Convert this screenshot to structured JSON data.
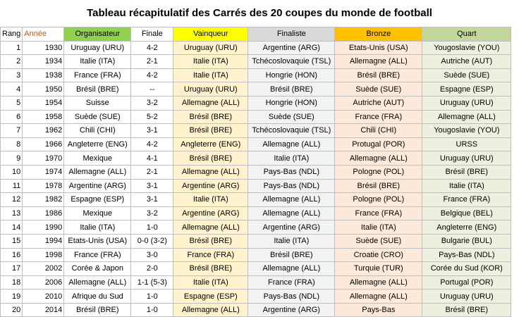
{
  "title": "Tableau récapitulatif des Carrés des 20 coupes du monde de football",
  "headers": {
    "rang": "Rang",
    "annee": "Année",
    "organisateur": "Organisateur",
    "finale": "Finale",
    "vainqueur": "Vainqueur",
    "finaliste": "Finaliste",
    "bronze": "Bronze",
    "quart": "Quart"
  },
  "colors": {
    "organisateur_header": "#92d050",
    "vainqueur_header": "#ffff00",
    "finaliste_header": "#d9d9d9",
    "bronze_header": "#ffc000",
    "quart_header": "#c4d79b"
  },
  "rows": [
    {
      "rang": "1",
      "annee": "1930",
      "organisateur": "Uruguay (URU)",
      "finale": "4-2",
      "vainqueur": "Uruguay (URU)",
      "finaliste": "Argentine (ARG)",
      "bronze": "Etats-Unis (USA)",
      "quart": "Yougoslavie (YOU)"
    },
    {
      "rang": "2",
      "annee": "1934",
      "organisateur": "Italie (ITA)",
      "finale": "2-1",
      "vainqueur": "Italie (ITA)",
      "finaliste": "Tchécoslovaquie (TSL)",
      "bronze": "Allemagne (ALL)",
      "quart": "Autriche (AUT)"
    },
    {
      "rang": "3",
      "annee": "1938",
      "organisateur": "France (FRA)",
      "finale": "4-2",
      "vainqueur": "Italie (ITA)",
      "finaliste": "Hongrie (HON)",
      "bronze": "Brésil (BRE)",
      "quart": "Suède (SUE)"
    },
    {
      "rang": "4",
      "annee": "1950",
      "organisateur": "Brésil (BRE)",
      "finale": "--",
      "vainqueur": "Uruguay (URU)",
      "finaliste": "Brésil (BRE)",
      "bronze": "Suède (SUE)",
      "quart": "Espagne (ESP)"
    },
    {
      "rang": "5",
      "annee": "1954",
      "organisateur": "Suisse",
      "finale": "3-2",
      "vainqueur": "Allemagne (ALL)",
      "finaliste": "Hongrie (HON)",
      "bronze": "Autriche (AUT)",
      "quart": "Uruguay (URU)"
    },
    {
      "rang": "6",
      "annee": "1958",
      "organisateur": "Suède (SUE)",
      "finale": "5-2",
      "vainqueur": "Brésil (BRE)",
      "finaliste": "Suède (SUE)",
      "bronze": "France (FRA)",
      "quart": "Allemagne (ALL)"
    },
    {
      "rang": "7",
      "annee": "1962",
      "organisateur": "Chili (CHI)",
      "finale": "3-1",
      "vainqueur": "Brésil (BRE)",
      "finaliste": "Tchécoslovaquie (TSL)",
      "bronze": "Chili (CHI)",
      "quart": "Yougoslavie (YOU)"
    },
    {
      "rang": "8",
      "annee": "1966",
      "organisateur": "Angleterre (ENG)",
      "finale": "4-2",
      "vainqueur": "Angleterre (ENG)",
      "finaliste": "Allemagne (ALL)",
      "bronze": "Protugal (POR)",
      "quart": "URSS"
    },
    {
      "rang": "9",
      "annee": "1970",
      "organisateur": "Mexique",
      "finale": "4-1",
      "vainqueur": "Brésil (BRE)",
      "finaliste": "Italie (ITA)",
      "bronze": "Allemagne (ALL)",
      "quart": "Uruguay (URU)"
    },
    {
      "rang": "10",
      "annee": "1974",
      "organisateur": "Allemagne (ALL)",
      "finale": "2-1",
      "vainqueur": "Allemagne (ALL)",
      "finaliste": "Pays-Bas (NDL)",
      "bronze": "Pologne (POL)",
      "quart": "Brésil (BRE)"
    },
    {
      "rang": "11",
      "annee": "1978",
      "organisateur": "Argentine (ARG)",
      "finale": "3-1",
      "vainqueur": "Argentine (ARG)",
      "finaliste": "Pays-Bas (NDL)",
      "bronze": "Brésil (BRE)",
      "quart": "Italie (ITA)"
    },
    {
      "rang": "12",
      "annee": "1982",
      "organisateur": "Espagne (ESP)",
      "finale": "3-1",
      "vainqueur": "Italie (ITA)",
      "finaliste": "Allemagne (ALL)",
      "bronze": "Pologne (POL)",
      "quart": "France (FRA)"
    },
    {
      "rang": "13",
      "annee": "1986",
      "organisateur": "Mexique",
      "finale": "3-2",
      "vainqueur": "Argentine (ARG)",
      "finaliste": "Allemagne (ALL)",
      "bronze": "France (FRA)",
      "quart": "Belgique (BEL)"
    },
    {
      "rang": "14",
      "annee": "1990",
      "organisateur": "Italie (ITA)",
      "finale": "1-0",
      "vainqueur": "Allemagne (ALL)",
      "finaliste": "Argentine (ARG)",
      "bronze": "Italie (ITA)",
      "quart": "Angleterre (ENG)"
    },
    {
      "rang": "15",
      "annee": "1994",
      "organisateur": "Etats-Unis (USA)",
      "finale": "0-0 (3-2)",
      "vainqueur": "Brésil (BRE)",
      "finaliste": "Italie (ITA)",
      "bronze": "Suède (SUE)",
      "quart": "Bulgarie (BUL)"
    },
    {
      "rang": "16",
      "annee": "1998",
      "organisateur": "France (FRA)",
      "finale": "3-0",
      "vainqueur": "France (FRA)",
      "finaliste": "Brésil (BRE)",
      "bronze": "Croatie (CRO)",
      "quart": "Pays-Bas (NDL)"
    },
    {
      "rang": "17",
      "annee": "2002",
      "organisateur": "Corée & Japon",
      "finale": "2-0",
      "vainqueur": "Brésil (BRE)",
      "finaliste": "Allemagne (ALL)",
      "bronze": "Turquie (TUR)",
      "quart": "Corée du Sud (KOR)"
    },
    {
      "rang": "18",
      "annee": "2006",
      "organisateur": "Allemagne (ALL)",
      "finale": "1-1 (5-3)",
      "vainqueur": "Italie (ITA)",
      "finaliste": "France (FRA)",
      "bronze": "Allemagne (ALL)",
      "quart": "Portugal (POR)"
    },
    {
      "rang": "19",
      "annee": "2010",
      "organisateur": "Afrique du Sud",
      "finale": "1-0",
      "vainqueur": "Espagne (ESP)",
      "finaliste": "Pays-Bas (NDL)",
      "bronze": "Allemagne (ALL)",
      "quart": "Uruguay (URU)"
    },
    {
      "rang": "20",
      "annee": "2014",
      "organisateur": "Brésil (BRE)",
      "finale": "1-0",
      "vainqueur": "Allemagne (ALL)",
      "finaliste": "Argentine (ARG)",
      "bronze": "Pays-Bas",
      "quart": "Brésil (BRE)"
    }
  ]
}
